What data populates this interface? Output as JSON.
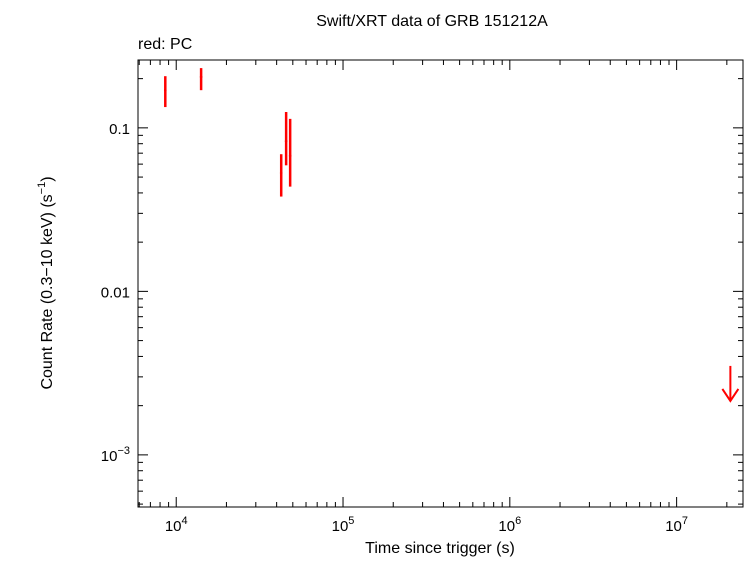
{
  "chart_data": {
    "type": "scatter",
    "title": "Swift/XRT data of GRB 151212A",
    "subtitle": "red: PC",
    "x_label": "Time since trigger (s)",
    "y_label": [
      "Count Rate (0.3−10 keV) (s",
      "−1",
      ")"
    ],
    "log_x": true,
    "log_y": true,
    "xlim": [
      5900,
      25000000
    ],
    "ylim": [
      0.00048,
      0.26
    ],
    "xticks": [
      {
        "value": 10000,
        "label": "104"
      },
      {
        "value": 100000,
        "label": "105"
      },
      {
        "value": 1000000,
        "label": "106"
      },
      {
        "value": 10000000,
        "label": "107"
      }
    ],
    "yticks": [
      0.1,
      0.01,
      {
        "value": 0.001,
        "label": "10−3"
      }
    ],
    "series": [
      {
        "name": "PC",
        "color": "#ff0000",
        "x": [
          8600,
          14100,
          42600,
          45600,
          48200
        ],
        "values": [
          0.17,
          0.205,
          0.053,
          0.083,
          0.0675
        ],
        "err_plus": [
          0.037,
          0.027,
          0.016,
          0.042,
          0.046
        ],
        "err_minus": [
          0.036,
          0.035,
          0.015,
          0.024,
          0.0238
        ]
      }
    ],
    "upper_limits": {
      "color": "#ff0000",
      "x": [
        21000000
      ],
      "values": [
        0.0035
      ]
    }
  }
}
